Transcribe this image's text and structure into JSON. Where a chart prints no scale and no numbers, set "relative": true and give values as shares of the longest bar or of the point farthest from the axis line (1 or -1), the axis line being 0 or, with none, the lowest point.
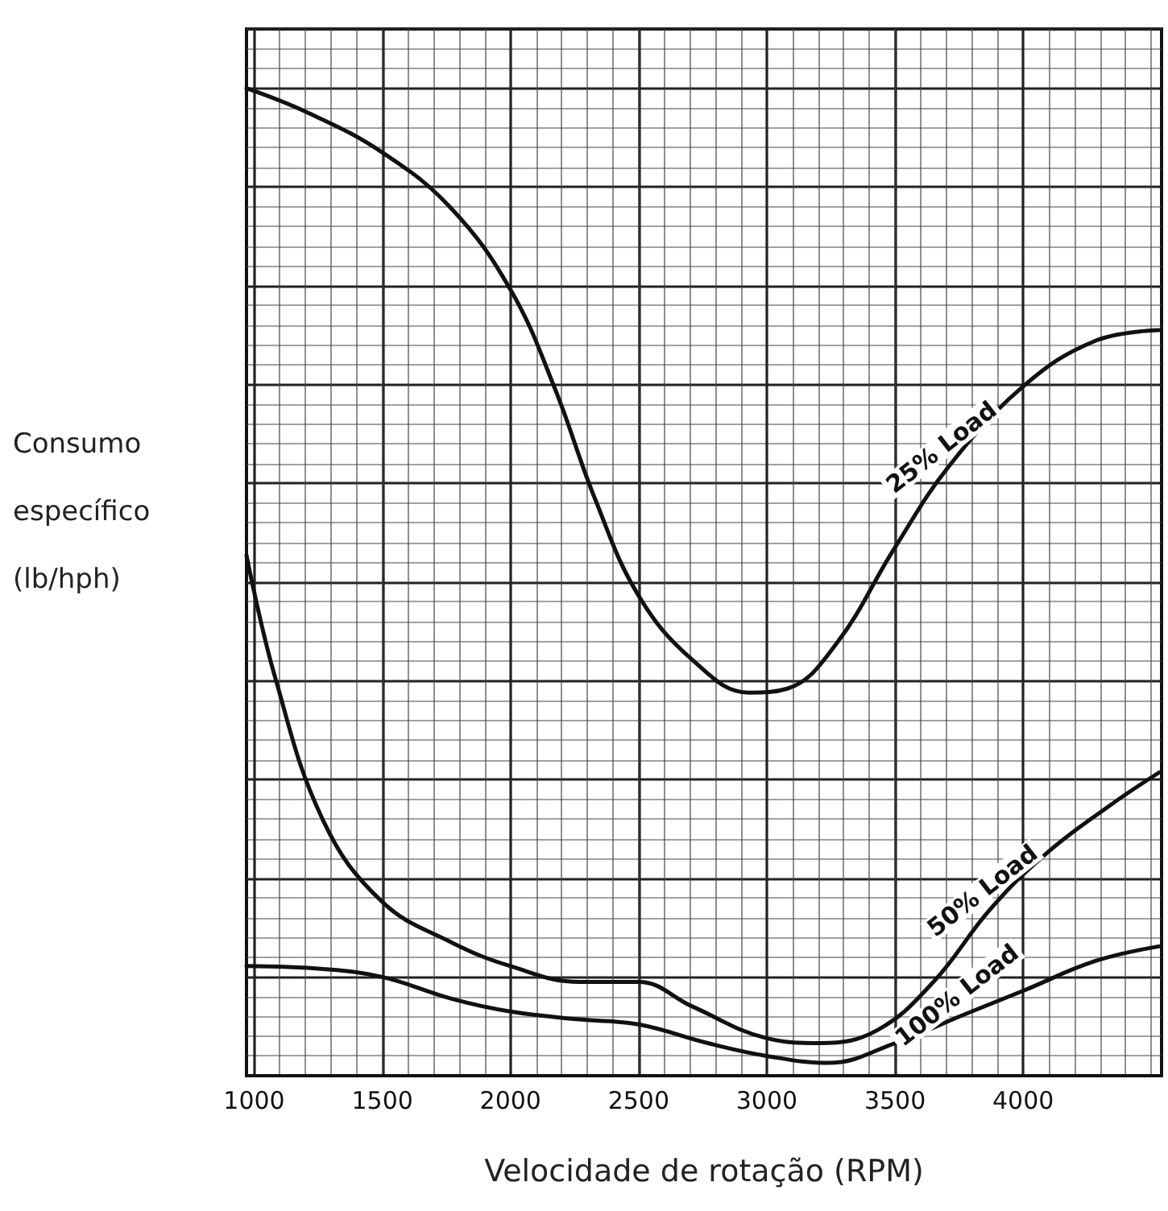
{
  "chart_data": {
    "type": "line",
    "xlabel": "Velocidade de rotação (RPM)",
    "ylabel": "Consumo específico (lb/hph)",
    "relative": true,
    "xlim": [
      970,
      4540
    ],
    "xticks": [
      1000,
      1500,
      2000,
      2500,
      3000,
      3500,
      4000
    ],
    "grid": true,
    "legend": false,
    "marker": "none",
    "line_style": "solid",
    "series": [
      {
        "name": "25% Load",
        "color": "#111111",
        "x": [
          970,
          1203,
          1500,
          1770,
          2000,
          2170,
          2330,
          2500,
          2710,
          2930,
          3080,
          3270,
          3500,
          3710,
          4000,
          4280,
          4530
        ],
        "values": [
          1.0,
          0.976,
          0.935,
          0.878,
          0.796,
          0.698,
          0.584,
          0.486,
          0.421,
          0.388,
          0.392,
          0.437,
          0.535,
          0.617,
          0.698,
          0.744,
          0.755
        ]
      },
      {
        "name": "50% Load",
        "color": "#111111",
        "x": [
          970,
          1080,
          1270,
          1500,
          1770,
          2000,
          2270,
          2500,
          2710,
          3000,
          3210,
          3430,
          3650,
          3870,
          4090,
          4340,
          4530
        ],
        "values": [
          0.527,
          0.405,
          0.258,
          0.176,
          0.135,
          0.111,
          0.095,
          0.095,
          0.07,
          0.038,
          0.033,
          0.046,
          0.095,
          0.168,
          0.225,
          0.274,
          0.307
        ]
      },
      {
        "name": "100% Load",
        "color": "#111111",
        "x": [
          970,
          1270,
          1500,
          1770,
          2000,
          2270,
          2500,
          2770,
          3000,
          3240,
          3500,
          3770,
          4000,
          4280,
          4530
        ],
        "values": [
          0.111,
          0.108,
          0.1,
          0.078,
          0.065,
          0.057,
          0.052,
          0.033,
          0.02,
          0.013,
          0.033,
          0.062,
          0.086,
          0.116,
          0.131
        ]
      }
    ]
  }
}
